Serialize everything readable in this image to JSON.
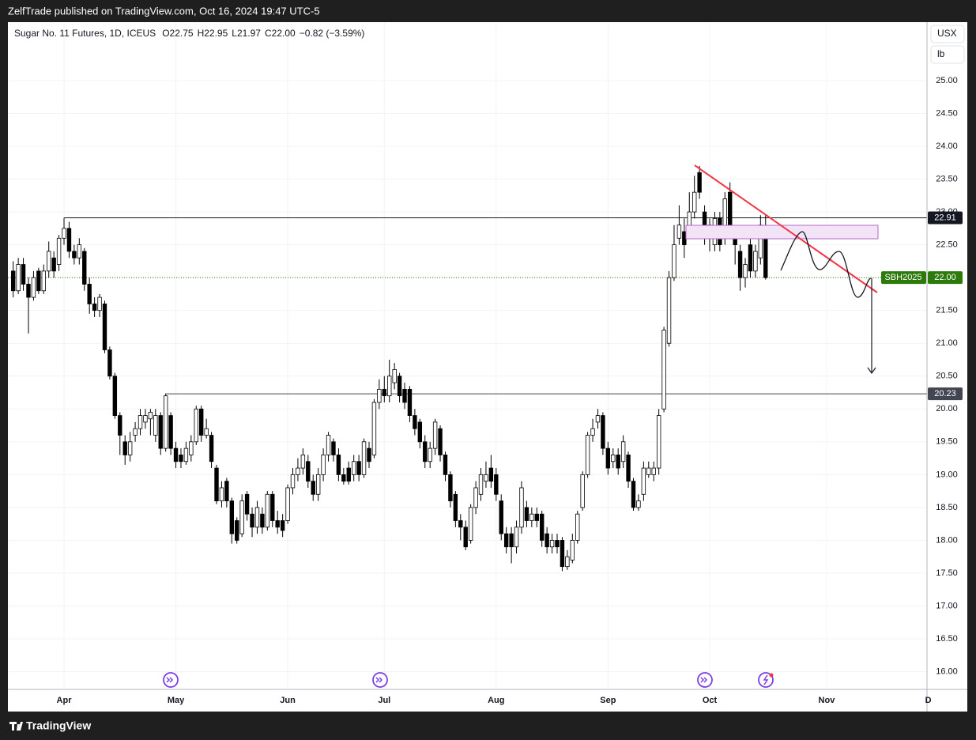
{
  "header": {
    "published": "ZelfTrade published on TradingView.com, Oct 16, 2024 19:47 UTC-5"
  },
  "footer": {
    "brand": "TradingView"
  },
  "chart_data": {
    "type": "candlestick",
    "symbol": "Sugar No. 11 Futures, 1D, ICEUS",
    "ohlc_legend": [
      {
        "label": "O",
        "value": "22.75"
      },
      {
        "label": "H",
        "value": "22.95"
      },
      {
        "label": "L",
        "value": "21.97"
      },
      {
        "label": "C",
        "value": "22.00"
      }
    ],
    "change": "−0.82 (−3.59%)",
    "currency_button": "USX",
    "unit_button": "lb",
    "x": [
      -10,
      -9,
      -8,
      -7,
      -6,
      -5,
      -4,
      -3,
      -2,
      -1,
      0,
      1,
      2,
      3,
      4,
      5,
      6,
      7,
      8,
      9,
      10,
      11,
      12,
      13,
      14,
      15,
      16,
      17,
      18,
      19,
      20,
      21,
      22,
      23,
      24,
      25,
      26,
      27,
      28,
      29,
      30,
      31,
      32,
      33,
      34,
      35,
      36,
      37,
      38,
      39,
      40,
      41,
      42,
      43,
      44,
      45,
      46,
      47,
      48,
      49,
      50,
      51,
      52,
      53,
      54,
      55,
      56,
      57,
      58,
      59,
      60,
      61,
      62,
      63,
      64,
      65,
      66,
      67,
      68,
      69,
      70,
      71,
      72,
      73,
      74,
      75,
      76,
      77,
      78,
      79,
      80,
      81,
      82,
      83,
      84,
      85,
      86,
      87,
      88,
      89,
      90,
      91,
      92,
      93,
      94,
      95,
      96,
      97,
      98,
      99,
      100,
      101,
      102,
      103,
      104,
      105,
      106,
      107,
      108,
      109,
      110,
      111,
      112,
      113,
      114,
      115,
      116,
      117,
      118,
      119,
      120,
      121,
      122,
      123,
      124,
      125,
      126,
      127,
      128,
      129,
      130,
      131,
      132,
      133,
      134,
      135,
      136,
      137,
      138
    ],
    "open": [
      22.1,
      21.8,
      22.2,
      21.9,
      21.7,
      22.1,
      21.8,
      22.1,
      22.3,
      22.2,
      22.6,
      22.75,
      22.4,
      22.3,
      22.4,
      21.9,
      21.6,
      21.5,
      21.6,
      20.9,
      20.5,
      19.9,
      19.5,
      19.3,
      19.6,
      19.7,
      19.8,
      19.85,
      19.6,
      19.9,
      19.4,
      19.9,
      19.4,
      19.3,
      19.2,
      19.3,
      19.5,
      20.0,
      19.6,
      19.6,
      19.1,
      18.6,
      18.9,
      18.6,
      18.3,
      18.1,
      18.7,
      18.4,
      18.2,
      18.4,
      18.2,
      18.7,
      18.3,
      18.3,
      18.3,
      18.8,
      19.0,
      19.1,
      19.2,
      18.9,
      18.7,
      19.0,
      19.3,
      19.5,
      19.3,
      19.0,
      19.1,
      19.0,
      19.2,
      19.0,
      19.4,
      19.3,
      20.1,
      20.3,
      20.2,
      20.4,
      20.5,
      20.3,
      20.3,
      19.9,
      19.8,
      19.5,
      19.2,
      19.4,
      19.7,
      19.3,
      19.0,
      18.7,
      18.3,
      18.2,
      18.0,
      18.5,
      18.7,
      18.9,
      19.1,
      19.0,
      18.6,
      18.1,
      18.1,
      17.9,
      18.2,
      18.5,
      18.3,
      18.4,
      18.4,
      18.1,
      17.9,
      18.0,
      18.0,
      17.6,
      17.7,
      18.0,
      18.5,
      19.0,
      19.6,
      19.8,
      19.9,
      19.4,
      19.2,
      19.3,
      19.2,
      19.3,
      18.9,
      18.5,
      18.7,
      19.0,
      19.0,
      19.1,
      20.0,
      21.0,
      22.0,
      22.6,
      22.7,
      22.7,
      23.0,
      23.6,
      23.0,
      22.6,
      22.5,
      22.9,
      22.6,
      23.3,
      22.7,
      22.4,
      22.0,
      22.5,
      22.1,
      22.3,
      22.75
    ],
    "high": [
      22.25,
      22.3,
      22.3,
      22.0,
      22.1,
      22.15,
      22.2,
      22.55,
      22.4,
      22.65,
      22.91,
      22.85,
      22.5,
      22.6,
      22.45,
      22.0,
      21.7,
      21.75,
      21.65,
      20.95,
      20.55,
      19.95,
      19.6,
      19.65,
      19.8,
      20.0,
      20.0,
      20.0,
      20.0,
      19.95,
      20.23,
      19.95,
      19.5,
      19.4,
      19.5,
      19.6,
      20.05,
      20.05,
      19.85,
      19.65,
      19.15,
      18.9,
      18.95,
      18.65,
      18.35,
      18.7,
      18.75,
      18.5,
      18.6,
      18.5,
      18.75,
      18.75,
      18.45,
      18.4,
      18.85,
      19.1,
      19.25,
      19.4,
      19.3,
      19.0,
      19.1,
      19.4,
      19.65,
      19.55,
      19.4,
      19.1,
      19.2,
      19.3,
      19.3,
      19.55,
      19.5,
      20.15,
      20.45,
      20.5,
      20.75,
      20.7,
      20.55,
      20.4,
      20.35,
      20.0,
      19.85,
      19.6,
      19.5,
      19.85,
      19.75,
      19.35,
      19.05,
      18.75,
      18.4,
      18.3,
      18.55,
      18.9,
      19.1,
      19.2,
      19.3,
      19.1,
      18.7,
      18.2,
      18.2,
      18.3,
      18.9,
      18.6,
      18.5,
      18.5,
      18.45,
      18.2,
      18.1,
      18.1,
      18.05,
      17.85,
      18.1,
      18.45,
      19.05,
      19.65,
      19.85,
      20.0,
      19.95,
      19.5,
      19.4,
      19.4,
      19.6,
      19.35,
      18.95,
      18.7,
      19.2,
      19.2,
      19.2,
      20.0,
      21.25,
      22.1,
      22.8,
      23.1,
      22.9,
      23.3,
      23.55,
      23.7,
      23.1,
      22.9,
      23.0,
      23.0,
      23.3,
      23.45,
      22.8,
      22.5,
      22.3,
      22.6,
      22.5,
      22.95,
      22.95
    ],
    "low": [
      21.7,
      21.75,
      21.8,
      21.15,
      21.65,
      21.75,
      21.75,
      22.0,
      22.0,
      22.1,
      22.5,
      22.3,
      22.2,
      22.2,
      21.8,
      21.45,
      21.4,
      21.4,
      20.85,
      20.45,
      19.85,
      19.3,
      19.15,
      19.2,
      19.5,
      19.6,
      19.7,
      19.6,
      19.5,
      19.3,
      19.35,
      19.3,
      19.1,
      19.1,
      19.15,
      19.2,
      19.45,
      19.5,
      19.55,
      19.1,
      18.55,
      18.5,
      18.5,
      17.95,
      17.95,
      18.05,
      18.3,
      18.05,
      18.1,
      18.1,
      18.15,
      18.2,
      18.1,
      18.05,
      18.25,
      18.7,
      18.9,
      19.0,
      18.8,
      18.6,
      18.6,
      18.9,
      19.2,
      19.2,
      18.9,
      18.85,
      18.85,
      18.9,
      18.9,
      18.95,
      19.1,
      19.25,
      20.0,
      20.1,
      20.1,
      20.3,
      20.1,
      20.0,
      19.8,
      19.6,
      19.4,
      19.1,
      19.1,
      19.3,
      19.2,
      18.9,
      18.5,
      18.2,
      18.0,
      17.85,
      17.95,
      18.4,
      18.6,
      18.8,
      18.8,
      18.6,
      18.0,
      17.8,
      17.65,
      17.8,
      18.1,
      18.2,
      18.2,
      18.2,
      17.9,
      17.8,
      17.8,
      17.8,
      17.53,
      17.55,
      17.65,
      17.95,
      18.45,
      18.95,
      19.5,
      19.7,
      19.3,
      19.0,
      19.1,
      19.0,
      19.1,
      18.8,
      18.45,
      18.45,
      18.6,
      18.95,
      18.9,
      19.0,
      19.95,
      20.95,
      21.95,
      22.5,
      22.3,
      22.6,
      22.9,
      23.2,
      22.5,
      22.4,
      22.4,
      22.4,
      22.5,
      22.6,
      22.2,
      21.8,
      21.85,
      22.0,
      22.0,
      22.2,
      21.97
    ],
    "close": [
      21.8,
      22.2,
      21.9,
      21.7,
      22.0,
      21.8,
      22.1,
      22.4,
      22.1,
      22.6,
      22.75,
      22.4,
      22.3,
      22.5,
      21.9,
      21.6,
      21.5,
      21.7,
      20.9,
      20.5,
      19.9,
      19.6,
      19.3,
      19.5,
      19.7,
      19.9,
      19.9,
      19.95,
      19.9,
      19.4,
      20.2,
      19.4,
      19.2,
      19.2,
      19.4,
      19.5,
      20.0,
      19.6,
      19.7,
      19.2,
      18.6,
      18.8,
      18.6,
      18.1,
      18.0,
      18.6,
      18.4,
      18.2,
      18.5,
      18.2,
      18.7,
      18.3,
      18.2,
      18.15,
      18.8,
      19.0,
      19.1,
      19.3,
      18.9,
      18.7,
      19.0,
      19.3,
      19.6,
      19.3,
      19.0,
      18.9,
      18.9,
      19.2,
      19.0,
      19.5,
      19.2,
      20.1,
      20.3,
      20.2,
      20.5,
      20.6,
      20.2,
      20.1,
      19.9,
      19.7,
      19.5,
      19.2,
      19.4,
      19.8,
      19.3,
      19.0,
      18.6,
      18.3,
      18.2,
      17.9,
      18.5,
      18.8,
      19.0,
      19.0,
      18.9,
      18.7,
      18.1,
      17.9,
      17.9,
      18.2,
      18.8,
      18.3,
      18.4,
      18.3,
      18.0,
      17.9,
      18.0,
      17.9,
      17.6,
      17.75,
      18.0,
      18.4,
      19.0,
      19.6,
      19.7,
      19.9,
      19.4,
      19.1,
      19.3,
      19.1,
      19.5,
      18.9,
      18.5,
      18.6,
      19.1,
      19.1,
      19.1,
      19.9,
      21.2,
      22.0,
      22.5,
      22.8,
      22.5,
      23.0,
      23.3,
      23.3,
      22.7,
      22.8,
      22.9,
      22.5,
      23.2,
      22.7,
      22.5,
      22.0,
      22.2,
      22.1,
      22.4,
      22.8,
      22.0
    ],
    "up_color": "#ffffff",
    "down_color": "#000000",
    "edge_color": "#000000",
    "xlim": [
      -11.04,
      169.75
    ],
    "xticks": [
      {
        "value": 0,
        "label": "Apr"
      },
      {
        "value": 22,
        "label": "May"
      },
      {
        "value": 44,
        "label": "Jun"
      },
      {
        "value": 63,
        "label": "Jul"
      },
      {
        "value": 85,
        "label": "Aug"
      },
      {
        "value": 107,
        "label": "Sep"
      },
      {
        "value": 127,
        "label": "Oct"
      },
      {
        "value": 150,
        "label": "Nov"
      },
      {
        "value": 170,
        "label": "D"
      }
    ],
    "ylim": [
      15.73,
      25.89
    ],
    "yticks": [
      {
        "value": 16,
        "label": "16.00"
      },
      {
        "value": 16.5,
        "label": "16.50"
      },
      {
        "value": 17,
        "label": "17.00"
      },
      {
        "value": 17.5,
        "label": "17.50"
      },
      {
        "value": 18,
        "label": "18.00"
      },
      {
        "value": 18.5,
        "label": "18.50"
      },
      {
        "value": 19,
        "label": "19.00"
      },
      {
        "value": 19.5,
        "label": "19.50"
      },
      {
        "value": 20,
        "label": "20.00"
      },
      {
        "value": 20.5,
        "label": "20.50"
      },
      {
        "value": 21,
        "label": "21.00"
      },
      {
        "value": 21.5,
        "label": "21.50"
      },
      {
        "value": 22,
        "label": "22.00"
      },
      {
        "value": 22.5,
        "label": "22.50"
      },
      {
        "value": 23,
        "label": "23.00"
      },
      {
        "value": 23.5,
        "label": "23.50"
      },
      {
        "value": 24,
        "label": "24.00"
      },
      {
        "value": 24.5,
        "label": "24.50"
      },
      {
        "value": 25,
        "label": "25.00"
      }
    ],
    "grid": true,
    "levels": [
      {
        "value": 22.91,
        "color": "#131722"
      },
      {
        "value": 20.23,
        "color": "#434651"
      }
    ],
    "last_price": {
      "name": "SBH2025",
      "value": 22,
      "label": "22.00",
      "color": "#2b7a0b"
    }
  }
}
